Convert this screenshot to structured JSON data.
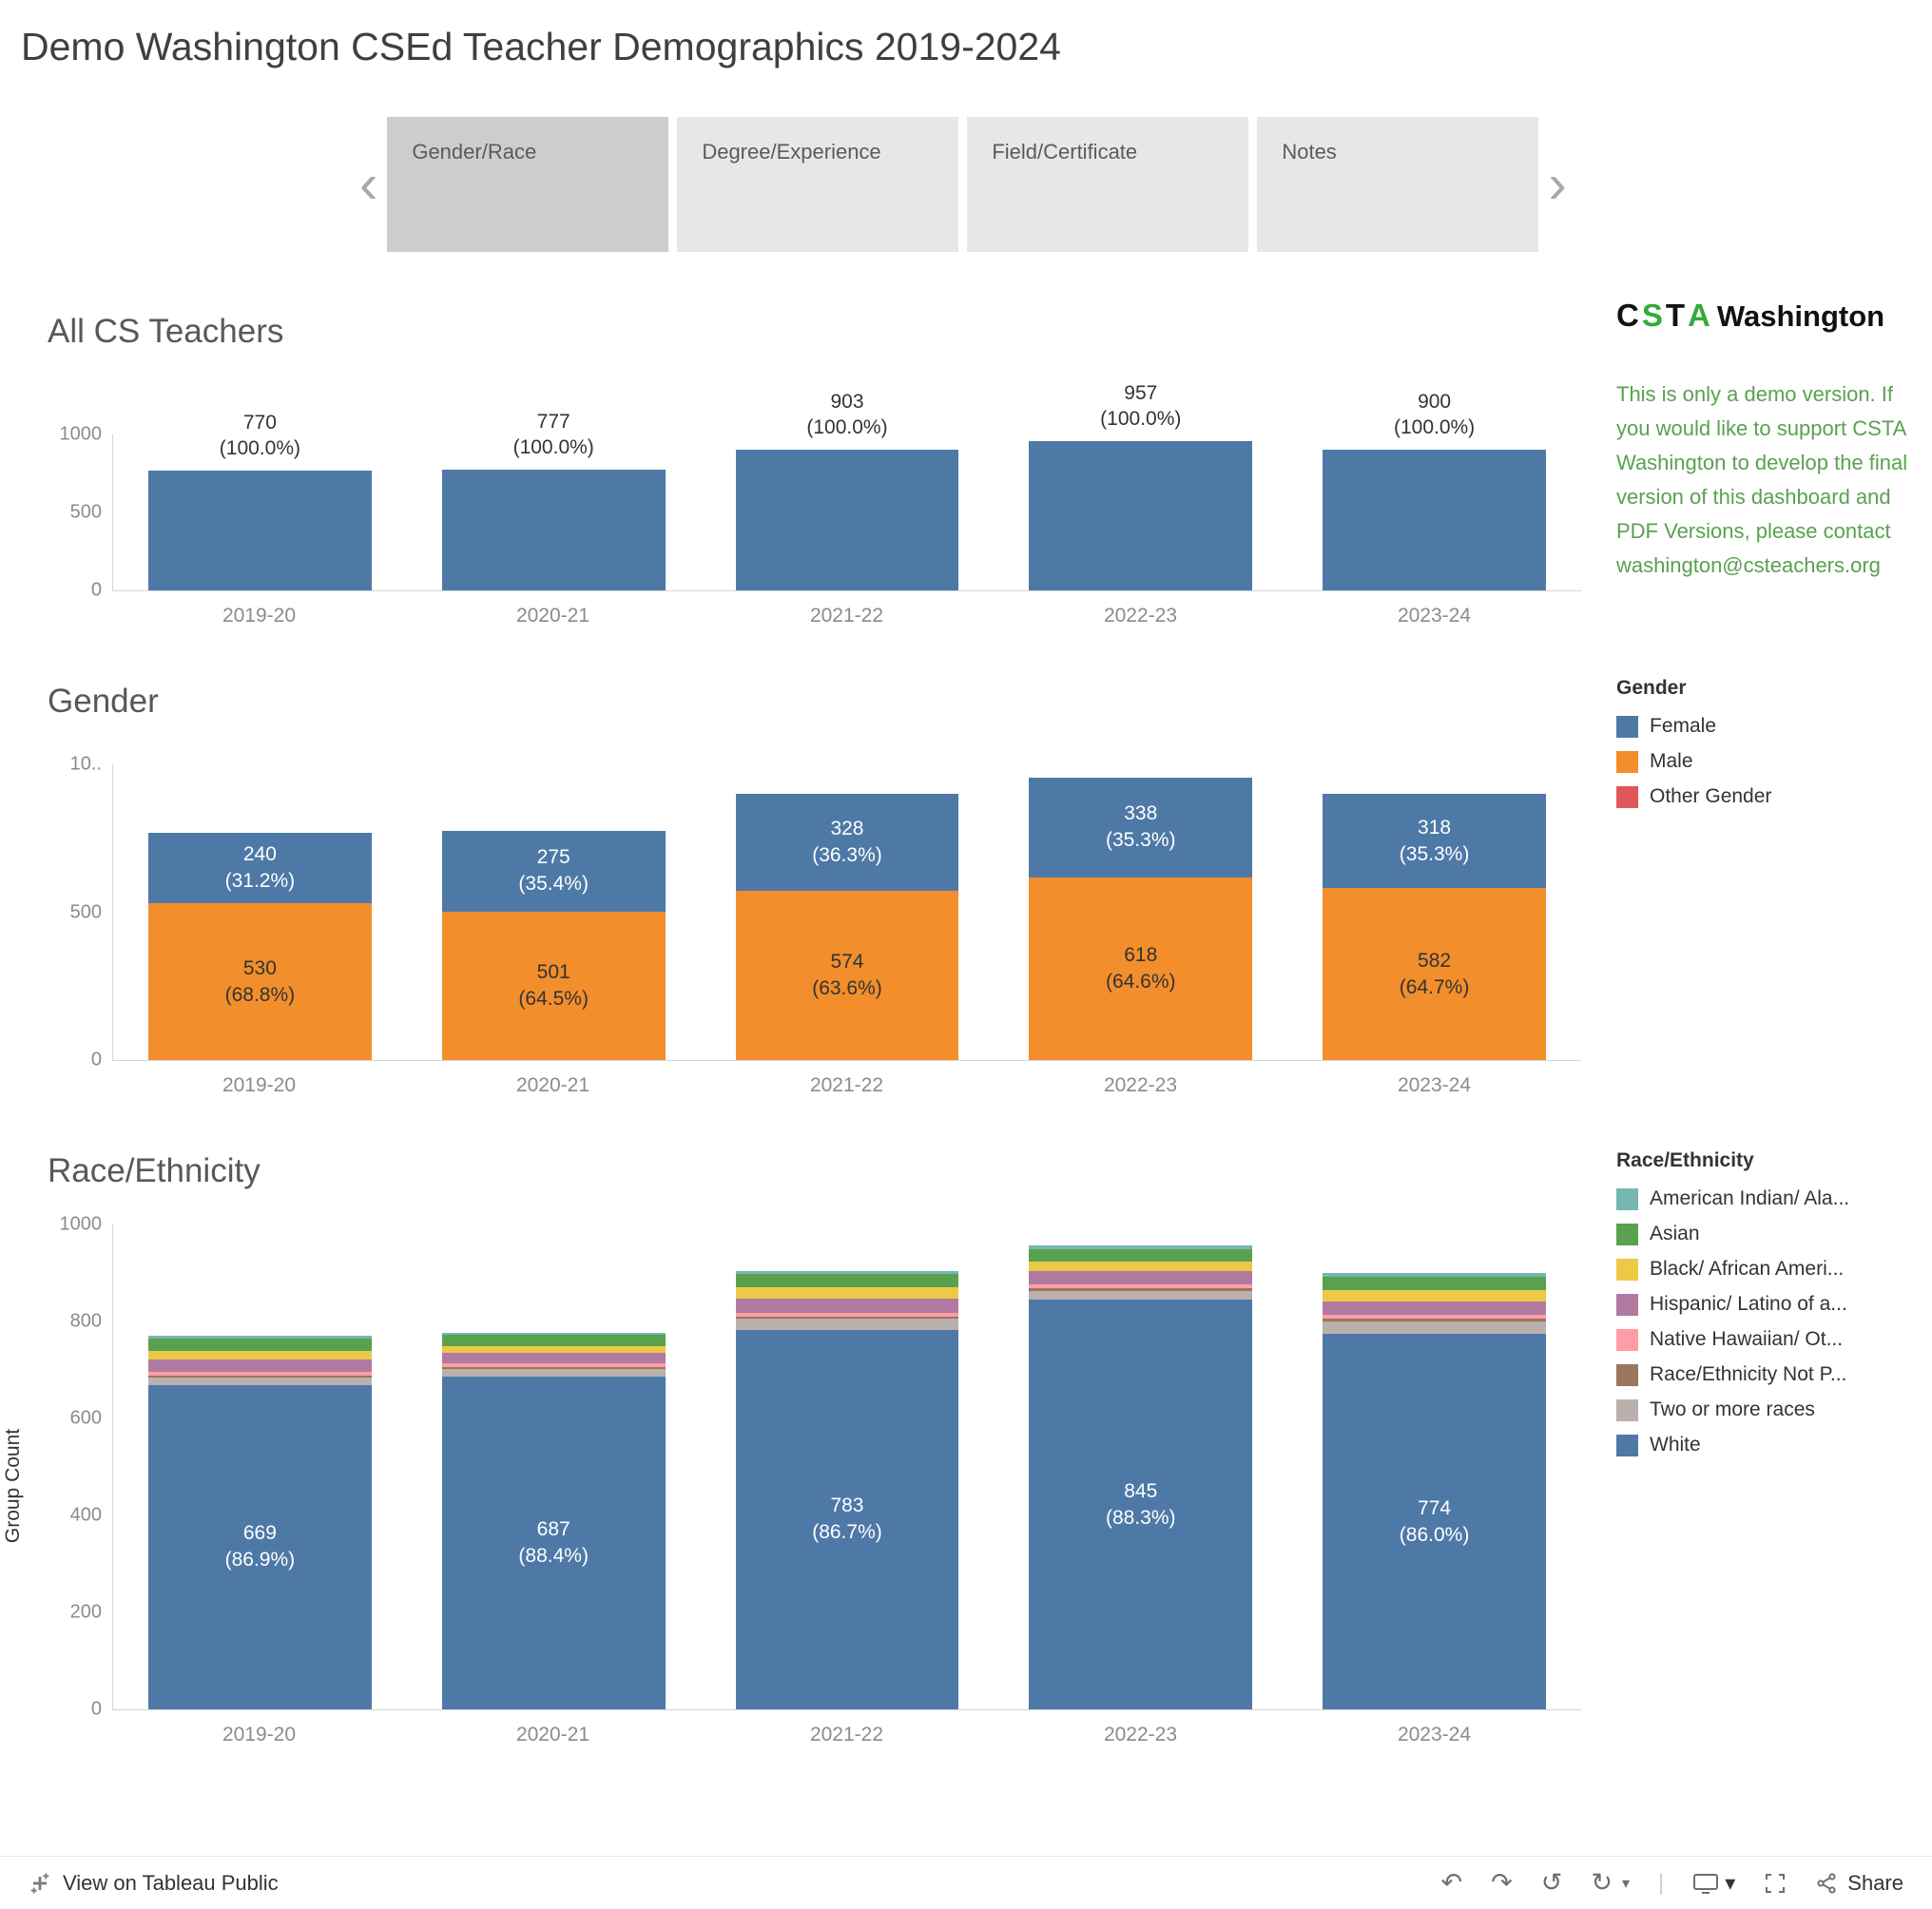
{
  "page": {
    "title": "Demo Washington CSEd Teacher Demographics 2019-2024"
  },
  "tabs": {
    "items": [
      {
        "label": "Gender/Race",
        "selected": true
      },
      {
        "label": "Degree/Experience",
        "selected": false
      },
      {
        "label": "Field/Certificate",
        "selected": false
      },
      {
        "label": "Notes",
        "selected": false
      }
    ]
  },
  "sidebar": {
    "brand": {
      "letters": [
        "C",
        "S",
        "T",
        "A"
      ],
      "region": "Washington"
    },
    "note": "This is only a demo version. If you would like to support CSTA Washington to develop the final version of this dashboard and PDF Versions, please contact washington@csteachers.org"
  },
  "legends": {
    "gender": {
      "title": "Gender",
      "items": [
        {
          "label": "Female",
          "color": "#4e79a7"
        },
        {
          "label": "Male",
          "color": "#f28e2b"
        },
        {
          "label": "Other Gender",
          "color": "#e15759"
        }
      ]
    },
    "race": {
      "title": "Race/Ethnicity",
      "items": [
        {
          "label": "American Indian/ Ala...",
          "color": "#76b7b2"
        },
        {
          "label": "Asian",
          "color": "#59a14f"
        },
        {
          "label": "Black/ African Ameri...",
          "color": "#edc948"
        },
        {
          "label": "Hispanic/ Latino of a...",
          "color": "#b07aa1"
        },
        {
          "label": "Native Hawaiian/ Ot...",
          "color": "#ff9da7"
        },
        {
          "label": "Race/Ethnicity Not P...",
          "color": "#9c755f"
        },
        {
          "label": "Two or more races",
          "color": "#bab0ac"
        },
        {
          "label": "White",
          "color": "#4e79a7"
        }
      ]
    }
  },
  "chart_data": [
    {
      "id": "all_cs_teachers",
      "type": "bar",
      "title": "All CS Teachers",
      "categories": [
        "2019-20",
        "2020-21",
        "2021-22",
        "2022-23",
        "2023-24"
      ],
      "values": [
        770,
        777,
        903,
        957,
        900
      ],
      "value_labels": [
        [
          "770",
          "(100.0%)"
        ],
        [
          "777",
          "(100.0%)"
        ],
        [
          "903",
          "(100.0%)"
        ],
        [
          "957",
          "(100.0%)"
        ],
        [
          "900",
          "(100.0%)"
        ]
      ],
      "bar_color": "#4e79a7",
      "ylim": [
        0,
        1000
      ],
      "yticks": [
        {
          "v": 0,
          "label": "0"
        },
        {
          "v": 500,
          "label": "500"
        },
        {
          "v": 1000,
          "label": "1000"
        }
      ]
    },
    {
      "id": "gender",
      "type": "stacked-bar",
      "title": "Gender",
      "categories": [
        "2019-20",
        "2020-21",
        "2021-22",
        "2022-23",
        "2023-24"
      ],
      "ylim": [
        0,
        1000
      ],
      "yticks": [
        {
          "v": 0,
          "label": "0"
        },
        {
          "v": 500,
          "label": "500"
        },
        {
          "v": 1000,
          "label": "10.."
        }
      ],
      "series": [
        {
          "name": "Male",
          "color": "#f28e2b",
          "label_color": "#333333",
          "values": [
            530,
            501,
            574,
            618,
            582
          ],
          "labels": [
            [
              "530",
              "(68.8%)"
            ],
            [
              "501",
              "(64.5%)"
            ],
            [
              "574",
              "(63.6%)"
            ],
            [
              "618",
              "(64.6%)"
            ],
            [
              "582",
              "(64.7%)"
            ]
          ]
        },
        {
          "name": "Female",
          "color": "#4e79a7",
          "label_color": "#ffffff",
          "values": [
            240,
            275,
            328,
            338,
            318
          ],
          "labels": [
            [
              "240",
              "(31.2%)"
            ],
            [
              "275",
              "(35.4%)"
            ],
            [
              "328",
              "(36.3%)"
            ],
            [
              "338",
              "(35.3%)"
            ],
            [
              "318",
              "(35.3%)"
            ]
          ]
        }
      ]
    },
    {
      "id": "race_ethnicity",
      "type": "stacked-bar",
      "title": "Race/Ethnicity",
      "ylabel": "Group Count",
      "categories": [
        "2019-20",
        "2020-21",
        "2021-22",
        "2022-23",
        "2023-24"
      ],
      "ylim": [
        0,
        1000
      ],
      "yticks": [
        {
          "v": 0,
          "label": "0"
        },
        {
          "v": 200,
          "label": "200"
        },
        {
          "v": 400,
          "label": "400"
        },
        {
          "v": 600,
          "label": "600"
        },
        {
          "v": 800,
          "label": "800"
        },
        {
          "v": 1000,
          "label": "1000"
        }
      ],
      "series": [
        {
          "name": "White",
          "color": "#4e79a7",
          "label_color": "#ffffff",
          "values": [
            669,
            687,
            783,
            845,
            774
          ],
          "labels": [
            [
              "669",
              "(86.9%)"
            ],
            [
              "687",
              "(88.4%)"
            ],
            [
              "783",
              "(86.7%)"
            ],
            [
              "845",
              "(88.3%)"
            ],
            [
              "774",
              "(86.0%)"
            ]
          ]
        },
        {
          "name": "Two or more races",
          "color": "#bab0ac",
          "values": [
            15,
            15,
            22,
            18,
            26
          ]
        },
        {
          "name": "Race/Ethnicity Not Provided",
          "color": "#9c755f",
          "values": [
            5,
            4,
            5,
            6,
            6
          ]
        },
        {
          "name": "Native Hawaiian/ Other Pacific Islander",
          "color": "#ff9da7",
          "values": [
            8,
            7,
            8,
            8,
            8
          ]
        },
        {
          "name": "Hispanic/ Latino of any race",
          "color": "#b07aa1",
          "values": [
            25,
            22,
            30,
            26,
            28
          ]
        },
        {
          "name": "Black/ African American",
          "color": "#edc948",
          "values": [
            18,
            14,
            22,
            20,
            22
          ]
        },
        {
          "name": "Asian",
          "color": "#59a14f",
          "values": [
            25,
            24,
            28,
            26,
            28
          ]
        },
        {
          "name": "American Indian/ Alaska Native",
          "color": "#76b7b2",
          "values": [
            5,
            4,
            5,
            8,
            8
          ]
        }
      ]
    }
  ],
  "footer": {
    "view_label": "View on Tableau Public",
    "share_label": "Share"
  }
}
